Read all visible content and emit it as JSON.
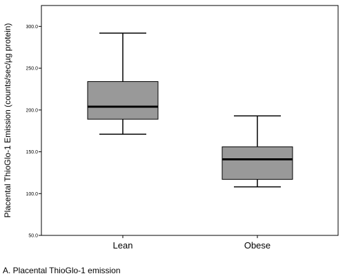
{
  "chart_data": {
    "type": "box",
    "title": "",
    "xlabel": "",
    "ylabel": "Placental ThioGlo-1 Emission (counts/sec/µg protein)",
    "ylim": [
      50,
      325
    ],
    "yticks": [
      50,
      100,
      150,
      200,
      250,
      300
    ],
    "ytick_labels": [
      "50.0",
      "100.0",
      "150.0",
      "200.0",
      "250.0",
      "300.0"
    ],
    "categories": [
      "Lean",
      "Obese"
    ],
    "boxes": [
      {
        "category": "Lean",
        "whisker_low": 171,
        "q1": 189,
        "median": 204,
        "q3": 234,
        "whisker_high": 292
      },
      {
        "category": "Obese",
        "whisker_low": 108,
        "q1": 117,
        "median": 141,
        "q3": 156,
        "whisker_high": 193
      }
    ],
    "box_color": "#999999",
    "grid": false,
    "legend": "none"
  },
  "caption": "A. Placental ThioGlo-1 emission"
}
